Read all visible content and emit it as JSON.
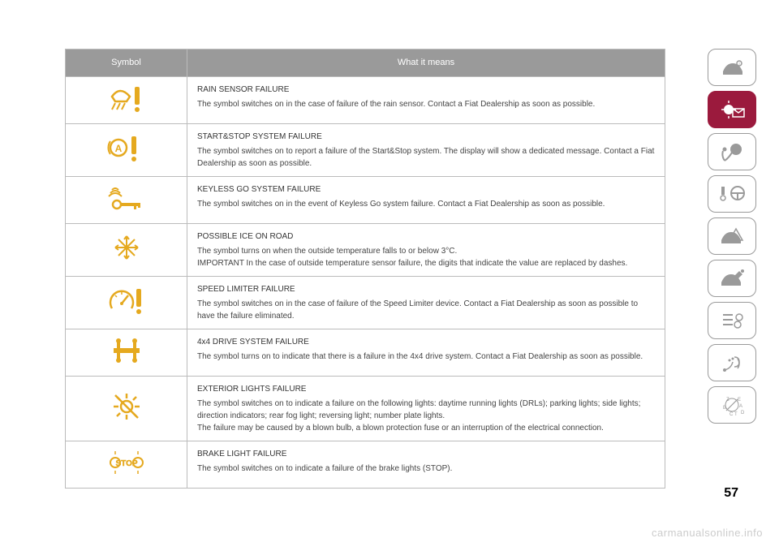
{
  "table": {
    "header_symbol": "Symbol",
    "header_meaning": "What it means",
    "rows": [
      {
        "icon": "rain-sensor",
        "title": "RAIN SENSOR FAILURE",
        "body": "The symbol switches on in the case of failure of the rain sensor. Contact a Fiat Dealership as soon as possible."
      },
      {
        "icon": "start-stop",
        "title": "START&STOP SYSTEM FAILURE",
        "body": "The symbol switches on to report a failure of the Start&Stop system. The display will show a dedicated message. Contact a Fiat Dealership as soon as possible."
      },
      {
        "icon": "keyless",
        "title": "KEYLESS GO SYSTEM FAILURE",
        "body": "The symbol switches on in the event of Keyless Go system failure. Contact a Fiat Dealership as soon as possible."
      },
      {
        "icon": "ice",
        "title": "POSSIBLE ICE ON ROAD",
        "body": "The symbol turns on when the outside temperature falls to or below 3°C.\nIMPORTANT In the case of outside temperature sensor failure, the digits that indicate the value are replaced by dashes."
      },
      {
        "icon": "speed-limiter",
        "title": "SPEED LIMITER FAILURE",
        "body": "The symbol switches on in the case of failure of the Speed Limiter device. Contact a Fiat Dealership as soon as possible to have the failure eliminated."
      },
      {
        "icon": "4x4",
        "title": "4x4 DRIVE SYSTEM FAILURE",
        "body": "The symbol turns on to indicate that there is a failure in the 4x4 drive system. Contact a Fiat Dealership as soon as possible."
      },
      {
        "icon": "exterior-lights",
        "title": "EXTERIOR LIGHTS FAILURE",
        "body": "The symbol switches on to indicate a failure on the following lights: daytime running lights (DRLs); parking lights; side lights; direction indicators; rear fog light; reversing light; number plate lights.\nThe failure may be caused by a blown bulb, a blown protection fuse or an interruption of the electrical connection."
      },
      {
        "icon": "brake-light",
        "title": "BRAKE LIGHT FAILURE",
        "body": "The symbol switches on to indicate a failure of the brake lights (STOP)."
      }
    ]
  },
  "colors": {
    "amber": "#e5a91f",
    "header_bg": "#9a9a9a",
    "active_tab": "#9b1a3d",
    "border": "#bbbbbb"
  },
  "page_number": "57",
  "watermark": "carmanualsonline.info"
}
